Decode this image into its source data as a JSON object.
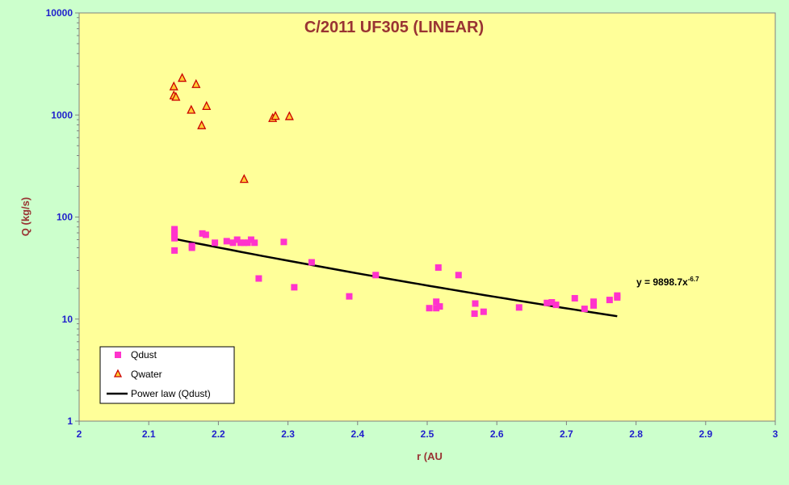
{
  "chart_data": {
    "type": "scatter",
    "title": "C/2011 UF305 (LINEAR)",
    "xlabel": "r (AU",
    "ylabel": "Q (kg/s)",
    "xlim": [
      2,
      3
    ],
    "ylim": [
      1,
      10000
    ],
    "yscale": "log",
    "x_ticks": [
      "2",
      "2.1",
      "2.2",
      "2.3",
      "2.4",
      "2.5",
      "2.6",
      "2.7",
      "2.8",
      "2.9",
      "3"
    ],
    "y_ticks": [
      "1",
      "10",
      "100",
      "1000",
      "10000"
    ],
    "legend_position": "bottom-left",
    "grid": false,
    "colors": {
      "plot_background": "#ffff99",
      "page_background": "#ccffcc",
      "qdust": "#ff33cc",
      "qwater_edge": "#cc0000",
      "qwater_fill": "#ffcc33",
      "fit_line": "#000000"
    },
    "series": [
      {
        "name": "Qdust",
        "marker": "square",
        "points": [
          [
            2.137,
            47
          ],
          [
            2.137,
            62
          ],
          [
            2.137,
            66
          ],
          [
            2.137,
            72
          ],
          [
            2.137,
            76
          ],
          [
            2.162,
            50
          ],
          [
            2.162,
            52
          ],
          [
            2.177,
            69
          ],
          [
            2.182,
            67
          ],
          [
            2.195,
            56
          ],
          [
            2.212,
            58
          ],
          [
            2.221,
            56
          ],
          [
            2.227,
            60
          ],
          [
            2.232,
            56
          ],
          [
            2.237,
            56
          ],
          [
            2.242,
            56
          ],
          [
            2.247,
            60
          ],
          [
            2.252,
            56
          ],
          [
            2.258,
            25
          ],
          [
            2.294,
            57
          ],
          [
            2.309,
            20.5
          ],
          [
            2.334,
            36
          ],
          [
            2.388,
            16.7
          ],
          [
            2.426,
            27
          ],
          [
            2.503,
            12.8
          ],
          [
            2.513,
            12.8
          ],
          [
            2.513,
            14.8
          ],
          [
            2.518,
            13.3
          ],
          [
            2.516,
            32
          ],
          [
            2.545,
            27
          ],
          [
            2.568,
            11.3
          ],
          [
            2.569,
            14.2
          ],
          [
            2.581,
            11.8
          ],
          [
            2.632,
            13
          ],
          [
            2.672,
            14.4
          ],
          [
            2.679,
            14.6
          ],
          [
            2.685,
            13.8
          ],
          [
            2.712,
            16
          ],
          [
            2.726,
            12.6
          ],
          [
            2.739,
            13.6
          ],
          [
            2.739,
            14.8
          ],
          [
            2.762,
            15.4
          ],
          [
            2.773,
            16.3
          ],
          [
            2.773,
            17
          ]
        ]
      },
      {
        "name": "Qwater",
        "marker": "triangle",
        "points": [
          [
            2.136,
            1900
          ],
          [
            2.136,
            1550
          ],
          [
            2.139,
            1500
          ],
          [
            2.148,
            2300
          ],
          [
            2.161,
            1120
          ],
          [
            2.168,
            2000
          ],
          [
            2.176,
            790
          ],
          [
            2.183,
            1220
          ],
          [
            2.237,
            235
          ],
          [
            2.278,
            930
          ],
          [
            2.282,
            975
          ],
          [
            2.302,
            970
          ]
        ]
      },
      {
        "name": "Power law (Qdust)",
        "type": "line",
        "function": "9898.7 * x^-6.7",
        "x_range": [
          2.137,
          2.773
        ]
      }
    ],
    "annotations": {
      "equation": {
        "base": "y = 9898.7x",
        "exponent": "-6.7",
        "anchor": [
          2.8,
          26
        ]
      }
    }
  }
}
